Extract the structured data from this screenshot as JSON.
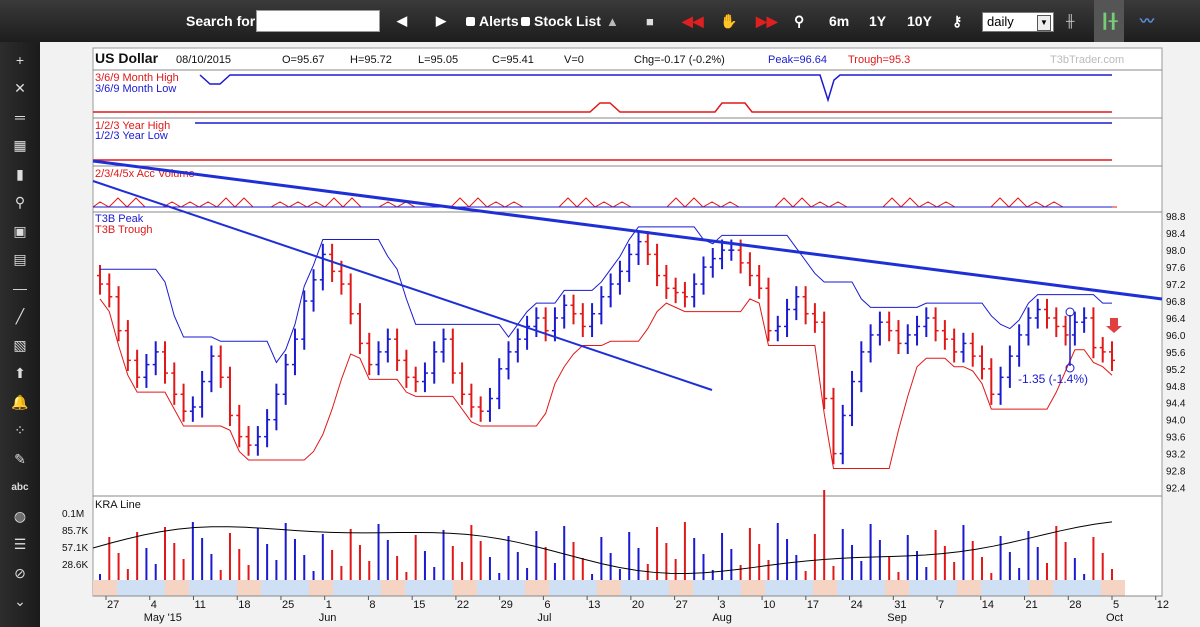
{
  "toolbar": {
    "search_label": "Search for:",
    "search_value": "",
    "alerts_label": "Alerts",
    "stocklist_label": "Stock List",
    "range_buttons": [
      "6m",
      "1Y",
      "10Y"
    ],
    "interval": "daily"
  },
  "header": {
    "symbol": "US Dollar",
    "date": "08/10/2015",
    "open": "O=95.67",
    "high": "H=95.72",
    "low": "L=95.05",
    "close": "C=95.41",
    "volume": "V=0",
    "change": "Chg=-0.17 (-0.2%)",
    "peak": "Peak=96.64",
    "trough": "Trough=95.3",
    "watermark": "T3bTrader.com"
  },
  "colors": {
    "up": "#1a1ad0",
    "down": "#e01818",
    "trend": "#1f2fd6",
    "toolbar": "#262626"
  },
  "tools": [
    "plus-icon",
    "cross-icon",
    "dash-icon",
    "table-icon",
    "barchart-icon",
    "magnify-icon",
    "save-icon",
    "image-icon",
    "minus-icon",
    "line-icon",
    "hatch-icon",
    "upload-icon",
    "bell-icon",
    "grid-icon",
    "brush-icon",
    "text-icon",
    "palette-icon",
    "list-icon",
    "erase-icon",
    "chevron-icon"
  ],
  "tool_text": "abc",
  "chart_data": {
    "type": "candlestick",
    "panels": {
      "hl369": {
        "labels": [
          "3/6/9 Month High",
          "3/6/9 Month Low"
        ]
      },
      "hl123": {
        "labels": [
          "1/2/3 Year High",
          "1/2/3 Year Low"
        ]
      },
      "accvol": {
        "labels": [
          "2/3/4/5x Acc Volume"
        ]
      },
      "price": {
        "legend": [
          "T3B Peak",
          "T3B Trough"
        ],
        "ylim": [
          92.2,
          98.9
        ],
        "yticks": [
          "98.8",
          "98.4",
          "98.0",
          "97.6",
          "97.2",
          "96.8",
          "96.4",
          "96.0",
          "95.6",
          "95.2",
          "94.8",
          "94.4",
          "94.0",
          "93.6",
          "93.2",
          "92.8",
          "92.4"
        ],
        "annotation": "-1.35 (-1.4%)"
      },
      "kra": {
        "label": "KRA Line",
        "volume_ticks": [
          "0.1M",
          "85.7K",
          "57.1K",
          "28.6K"
        ]
      }
    },
    "x_day_labels": [
      "27",
      "4",
      "11",
      "18",
      "25",
      "1",
      "8",
      "15",
      "22",
      "29",
      "6",
      "13",
      "20",
      "27",
      "3",
      "10",
      "17",
      "24",
      "31",
      "7",
      "14",
      "21",
      "28",
      "5",
      "12"
    ],
    "x_month_labels": [
      {
        "label": "May '15",
        "at": 1
      },
      {
        "label": "Jun",
        "at": 5
      },
      {
        "label": "Jul",
        "at": 10
      },
      {
        "label": "Aug",
        "at": 14
      },
      {
        "label": "Sep",
        "at": 18
      },
      {
        "label": "Oct",
        "at": 23
      }
    ],
    "ohlc_closes": [
      97.2,
      96.9,
      96.1,
      95.4,
      95.0,
      95.3,
      95.6,
      95.1,
      94.6,
      94.2,
      94.3,
      94.9,
      95.5,
      95.0,
      94.1,
      93.6,
      93.4,
      93.6,
      94.0,
      94.6,
      95.3,
      95.9,
      96.8,
      97.3,
      97.9,
      97.5,
      97.2,
      96.5,
      95.8,
      95.3,
      95.6,
      95.9,
      95.4,
      95.0,
      94.9,
      95.1,
      95.6,
      95.9,
      95.1,
      94.6,
      94.3,
      94.2,
      94.5,
      95.2,
      95.6,
      95.9,
      96.2,
      96.4,
      96.1,
      96.4,
      96.7,
      96.5,
      96.2,
      96.5,
      96.9,
      97.2,
      97.5,
      97.9,
      98.2,
      97.9,
      97.4,
      97.1,
      97.0,
      96.9,
      97.2,
      97.6,
      97.8,
      98.0,
      98.0,
      97.7,
      97.4,
      97.1,
      96.1,
      96.2,
      96.6,
      96.9,
      96.5,
      96.3,
      94.5,
      93.2,
      94.1,
      94.9,
      95.6,
      96.0,
      96.3,
      96.1,
      95.8,
      96.0,
      96.2,
      96.4,
      96.1,
      95.9,
      95.6,
      95.8,
      95.5,
      95.2,
      94.6,
      95.0,
      95.5,
      96.0,
      96.4,
      96.6,
      96.4,
      96.2,
      96.0,
      96.3,
      96.4,
      95.7,
      95.6,
      95.4
    ]
  }
}
